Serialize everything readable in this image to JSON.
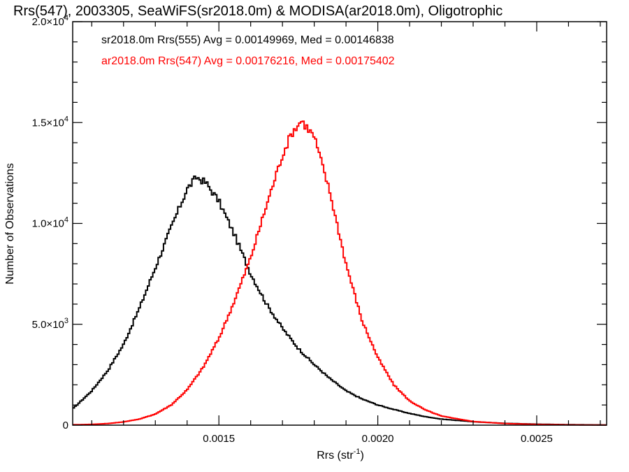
{
  "chart_data": {
    "type": "line",
    "title": "Rrs(547), 2003305, SeaWiFS(sr2018.0m) & MODISA(ar2018.0m), Oligotrophic",
    "xlabel": "Rrs (str",
    "xlabel_sup": "-1",
    "xlabel_close": ")",
    "ylabel": "Number of Observations",
    "xlim": [
      0.00104,
      0.00272
    ],
    "ylim": [
      0,
      20000
    ],
    "x_ticks": [
      {
        "value": 0.0015,
        "label": "0.0015"
      },
      {
        "value": 0.002,
        "label": "0.0020"
      },
      {
        "value": 0.0025,
        "label": "0.0025"
      }
    ],
    "y_ticks": [
      {
        "value": 0,
        "label": "0",
        "sup": ""
      },
      {
        "value": 5000,
        "label": "5.0×10",
        "sup": "3"
      },
      {
        "value": 10000,
        "label": "1.0×10",
        "sup": "4"
      },
      {
        "value": 15000,
        "label": "1.5×10",
        "sup": "4"
      },
      {
        "value": 20000,
        "label": "2.0×10",
        "sup": "4"
      }
    ],
    "annotations": [
      {
        "text": "sr2018.0m Rrs(555) Avg = 0.00149969, Med = 0.00146838",
        "color": "#000000"
      },
      {
        "text": "ar2018.0m Rrs(547) Avg = 0.00176216, Med = 0.00175402",
        "color": "#ff0000"
      }
    ],
    "series": [
      {
        "color": "#000000",
        "x": [
          0.00104,
          0.0011,
          0.00115,
          0.0012,
          0.00125,
          0.0013,
          0.00135,
          0.0014,
          0.00143,
          0.00146,
          0.0015,
          0.00155,
          0.0016,
          0.00165,
          0.0017,
          0.00175,
          0.0018,
          0.00185,
          0.0019,
          0.00195,
          0.002,
          0.00205,
          0.0021,
          0.00215,
          0.0022,
          0.0023,
          0.0024,
          0.0025,
          0.0026,
          0.00272
        ],
        "y": [
          800,
          1700,
          2700,
          4000,
          5800,
          7800,
          9800,
          11700,
          12300,
          12000,
          11100,
          9400,
          7500,
          6000,
          4800,
          3800,
          3000,
          2300,
          1700,
          1300,
          1000,
          780,
          580,
          420,
          300,
          170,
          90,
          50,
          25,
          10
        ]
      },
      {
        "color": "#ff0000",
        "x": [
          0.00104,
          0.0011,
          0.00115,
          0.0012,
          0.00125,
          0.0013,
          0.00135,
          0.0014,
          0.00145,
          0.0015,
          0.00155,
          0.0016,
          0.00165,
          0.0017,
          0.00173,
          0.00176,
          0.0018,
          0.00185,
          0.0019,
          0.00195,
          0.002,
          0.00205,
          0.0021,
          0.00215,
          0.0022,
          0.0023,
          0.0024,
          0.0025,
          0.0026,
          0.00272
        ],
        "y": [
          20,
          40,
          80,
          160,
          300,
          550,
          1000,
          1750,
          2850,
          4300,
          6200,
          8300,
          10900,
          13400,
          14500,
          15100,
          14300,
          11500,
          8000,
          5200,
          3350,
          2000,
          1200,
          750,
          450,
          180,
          80,
          35,
          15,
          5
        ]
      }
    ]
  }
}
